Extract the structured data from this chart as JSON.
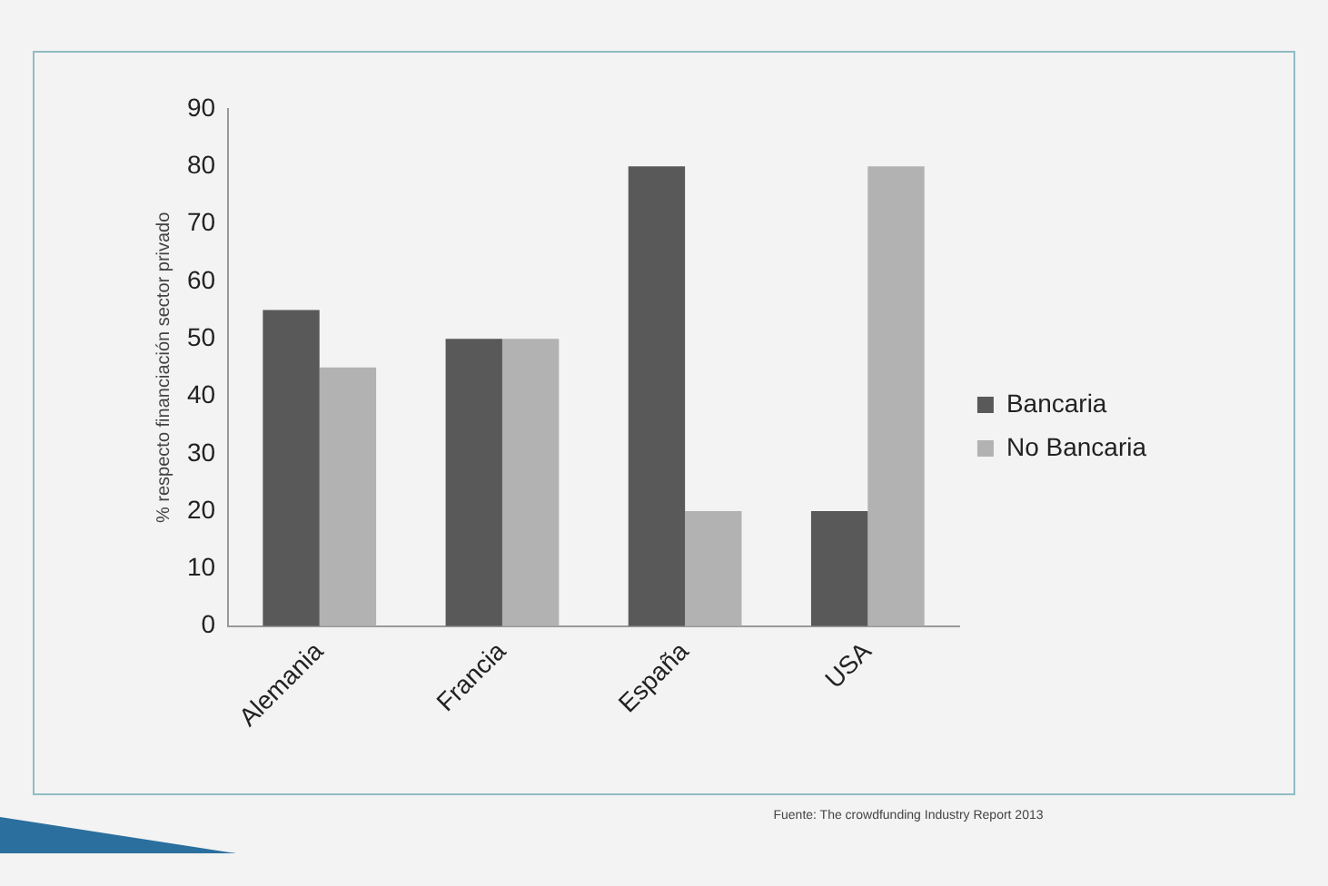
{
  "chart_data": {
    "type": "bar",
    "ylabel": "% respecto financiación sector privado",
    "categories": [
      "Alemania",
      "Francia",
      "España",
      "USA"
    ],
    "series": [
      {
        "name": "Bancaria",
        "color": "#595959",
        "values": [
          55,
          50,
          80,
          20
        ]
      },
      {
        "name": "No Bancaria",
        "color": "#b2b2b2",
        "values": [
          45,
          50,
          20,
          80
        ]
      }
    ],
    "ylim": [
      0,
      90
    ],
    "yticks": [
      0,
      10,
      20,
      30,
      40,
      50,
      60,
      70,
      80,
      90
    ],
    "grid": false,
    "legend": "right",
    "annotations": [
      "Fuente:  The crowdfunding Industry Report  2013"
    ]
  }
}
